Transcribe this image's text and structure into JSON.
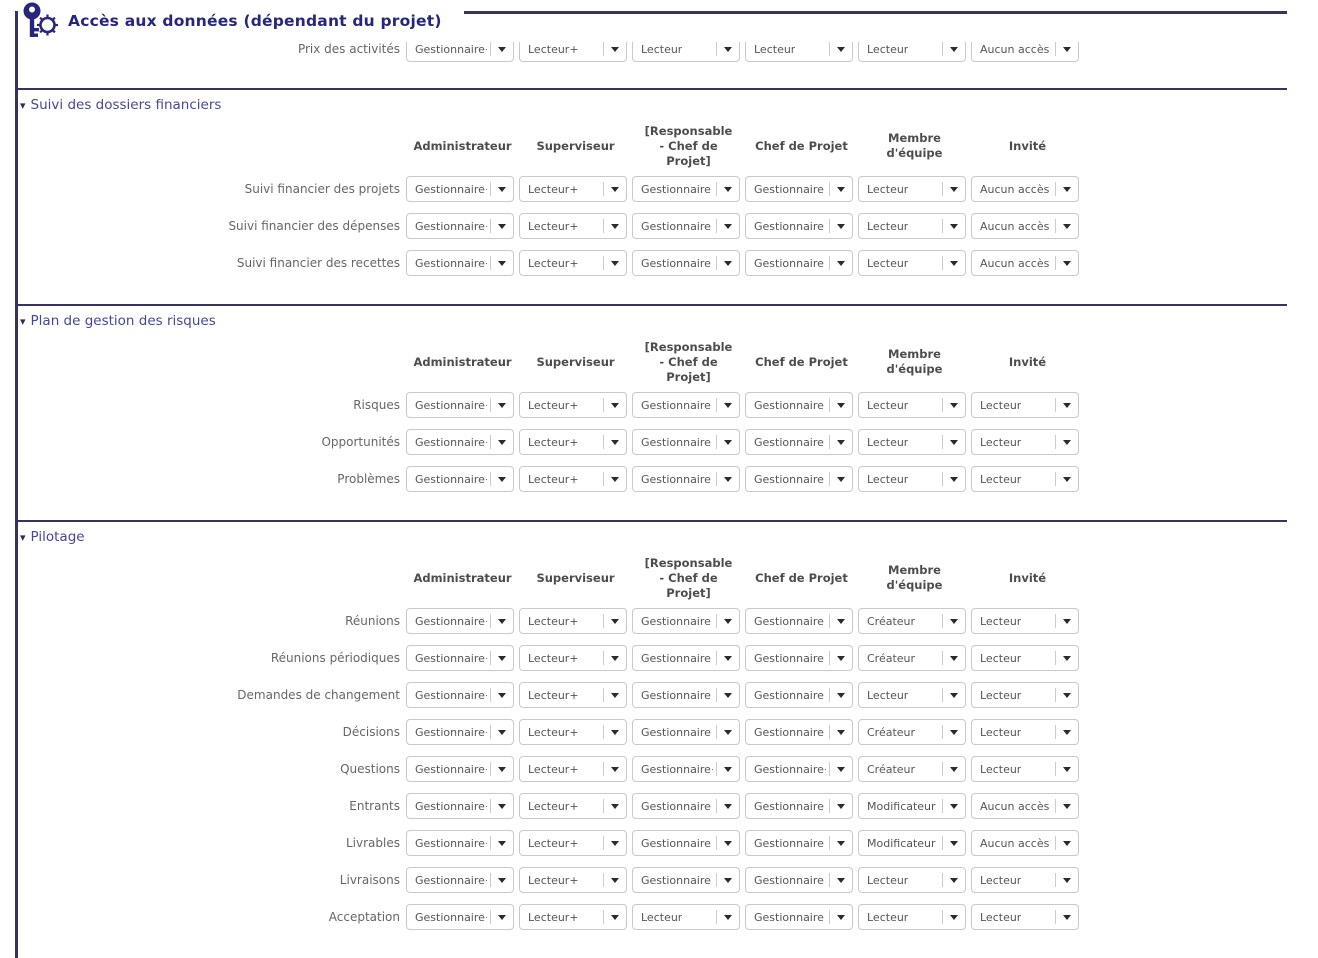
{
  "header": {
    "title": "Accès aux données (dépendant du projet)",
    "icon": "key-gear-icon"
  },
  "columns": [
    {
      "label": "Administrateur"
    },
    {
      "label": "Superviseur"
    },
    {
      "label": "[Responsable\n- Chef de\nProjet]"
    },
    {
      "label": "Chef de Projet"
    },
    {
      "label": "Membre\nd'équipe"
    },
    {
      "label": "Invité"
    }
  ],
  "partial_row": {
    "label": "Prix des activités",
    "values": [
      "Gestionnaire+",
      "Lecteur+",
      "Lecteur",
      "Lecteur",
      "Lecteur",
      "Aucun accès"
    ]
  },
  "sections": [
    {
      "title": "Suivi des dossiers financiers",
      "rows": [
        {
          "label": "Suivi financier des projets",
          "values": [
            "Gestionnaire+",
            "Lecteur+",
            "Gestionnaire",
            "Gestionnaire",
            "Lecteur",
            "Aucun accès"
          ]
        },
        {
          "label": "Suivi financier des dépenses",
          "values": [
            "Gestionnaire+",
            "Lecteur+",
            "Gestionnaire",
            "Gestionnaire",
            "Lecteur",
            "Aucun accès"
          ]
        },
        {
          "label": "Suivi financier des recettes",
          "values": [
            "Gestionnaire+",
            "Lecteur+",
            "Gestionnaire",
            "Gestionnaire",
            "Lecteur",
            "Aucun accès"
          ]
        }
      ]
    },
    {
      "title": "Plan de gestion des risques",
      "rows": [
        {
          "label": "Risques",
          "values": [
            "Gestionnaire+",
            "Lecteur+",
            "Gestionnaire",
            "Gestionnaire",
            "Lecteur",
            "Lecteur"
          ]
        },
        {
          "label": "Opportunités",
          "values": [
            "Gestionnaire+",
            "Lecteur+",
            "Gestionnaire",
            "Gestionnaire",
            "Lecteur",
            "Lecteur"
          ]
        },
        {
          "label": "Problèmes",
          "values": [
            "Gestionnaire+",
            "Lecteur+",
            "Gestionnaire",
            "Gestionnaire",
            "Lecteur",
            "Lecteur"
          ]
        }
      ]
    },
    {
      "title": "Pilotage",
      "rows": [
        {
          "label": "Réunions",
          "values": [
            "Gestionnaire+",
            "Lecteur+",
            "Gestionnaire",
            "Gestionnaire",
            "Créateur",
            "Lecteur"
          ]
        },
        {
          "label": "Réunions périodiques",
          "values": [
            "Gestionnaire+",
            "Lecteur+",
            "Gestionnaire",
            "Gestionnaire",
            "Créateur",
            "Lecteur"
          ]
        },
        {
          "label": "Demandes de changement",
          "values": [
            "Gestionnaire+",
            "Lecteur+",
            "Gestionnaire",
            "Gestionnaire",
            "Lecteur",
            "Lecteur"
          ]
        },
        {
          "label": "Décisions",
          "values": [
            "Gestionnaire+",
            "Lecteur+",
            "Gestionnaire",
            "Gestionnaire",
            "Créateur",
            "Lecteur"
          ]
        },
        {
          "label": "Questions",
          "values": [
            "Gestionnaire+",
            "Lecteur+",
            "Gestionnaire+",
            "Gestionnaire+",
            "Créateur",
            "Lecteur"
          ]
        },
        {
          "label": "Entrants",
          "values": [
            "Gestionnaire+",
            "Lecteur+",
            "Gestionnaire",
            "Gestionnaire",
            "Modificateur",
            "Aucun accès"
          ]
        },
        {
          "label": "Livrables",
          "values": [
            "Gestionnaire+",
            "Lecteur+",
            "Gestionnaire",
            "Gestionnaire",
            "Modificateur",
            "Aucun accès"
          ]
        },
        {
          "label": "Livraisons",
          "values": [
            "Gestionnaire+",
            "Lecteur+",
            "Gestionnaire",
            "Gestionnaire",
            "Lecteur",
            "Lecteur"
          ]
        },
        {
          "label": "Acceptation",
          "values": [
            "Gestionnaire+",
            "Lecteur+",
            "Lecteur",
            "Gestionnaire",
            "Lecteur",
            "Lecteur"
          ]
        }
      ]
    }
  ],
  "colors": {
    "frame_navy": "#34345c",
    "title_navy": "#26267f",
    "section_title_blue": "#4646a0",
    "dropdown_border": "#c9c9c9",
    "text_gray": "#555555"
  }
}
